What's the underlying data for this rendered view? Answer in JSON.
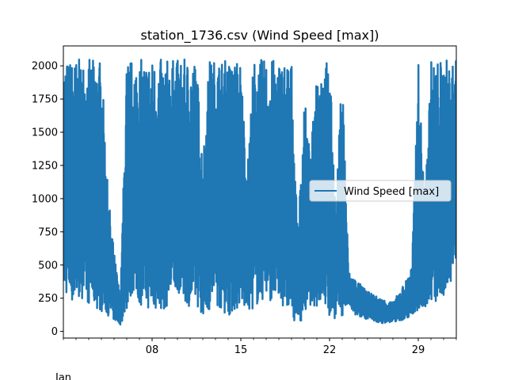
{
  "chart_data": {
    "type": "line",
    "title": "station_1736.csv (Wind Speed [max])",
    "xlabel": "",
    "ylabel": "",
    "x_axis_year_label": "Jan",
    "xlim": [
      "2021-01-01",
      "2021-02-01"
    ],
    "ylim": [
      -50,
      2150
    ],
    "yticks": [
      0,
      250,
      500,
      750,
      1000,
      1250,
      1500,
      1750,
      2000
    ],
    "xticks": [
      {
        "date": "2021-01-08",
        "label": "08"
      },
      {
        "date": "2021-01-15",
        "label": "15"
      },
      {
        "date": "2021-01-22",
        "label": "22"
      },
      {
        "date": "2021-01-29",
        "label": "29"
      }
    ],
    "grid": false,
    "legend": {
      "position": "center-right",
      "entries": [
        "Wind Speed [max]"
      ]
    },
    "series": [
      {
        "name": "Wind Speed [max]",
        "color": "#1f77b4",
        "x_days": [
          0,
          0.8,
          1.5,
          2.2,
          3.0,
          3.5,
          4.0,
          4.5,
          5.0,
          5.5,
          6.0,
          6.5,
          7.0,
          8.0,
          9.0,
          10.0,
          10.5,
          11.0,
          11.5,
          12.0,
          13.0,
          14.0,
          14.5,
          15.0,
          16.0,
          17.0,
          17.5,
          18.0,
          18.5,
          19.0,
          19.5,
          20.0,
          20.5,
          21.0,
          21.5,
          22.0,
          22.5,
          23.0,
          24.0,
          25.0,
          26.0,
          27.0,
          27.5,
          28.0,
          28.5,
          29.0,
          30.0,
          31.0
        ],
        "values_low": [
          300,
          200,
          250,
          180,
          150,
          120,
          80,
          50,
          150,
          300,
          200,
          180,
          150,
          160,
          300,
          180,
          200,
          120,
          150,
          200,
          110,
          180,
          150,
          170,
          250,
          200,
          180,
          100,
          60,
          100,
          200,
          180,
          200,
          80,
          100,
          100,
          200,
          120,
          90,
          60,
          70,
          90,
          120,
          140,
          180,
          200,
          220,
          500
        ],
        "values_high": [
          2050,
          2050,
          2050,
          2050,
          2050,
          1080,
          600,
          250,
          2050,
          2050,
          2050,
          2050,
          2050,
          2050,
          2050,
          2050,
          2050,
          1300,
          2050,
          2050,
          2050,
          2050,
          1200,
          2050,
          2050,
          2050,
          2050,
          2050,
          700,
          1800,
          1300,
          2050,
          2050,
          2050,
          900,
          2050,
          450,
          400,
          300,
          250,
          220,
          380,
          500,
          2050,
          1000,
          2050,
          2050,
          2050
        ]
      }
    ]
  }
}
